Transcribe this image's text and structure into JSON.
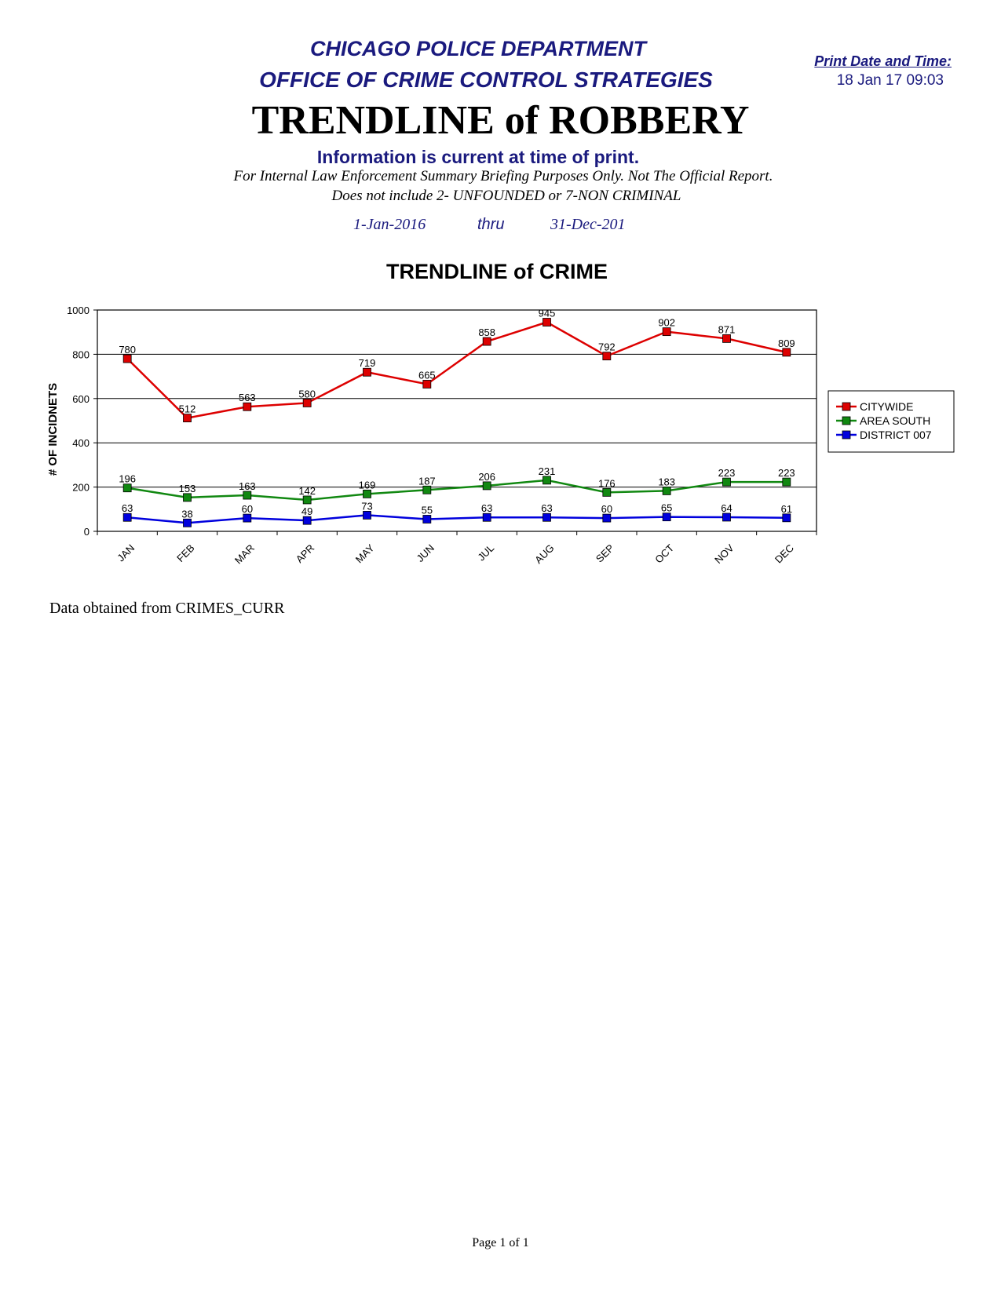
{
  "header": {
    "department": "CHICAGO POLICE DEPARTMENT",
    "office": "OFFICE OF CRIME CONTROL STRATEGIES",
    "report_title": "TRENDLINE of ROBBERY",
    "info_line": "Information is current at time of print.",
    "disclaimer_1": "For Internal Law Enforcement Summary Briefing Purposes Only. Not The Official Report.",
    "disclaimer_2": "Does not include 2- UNFOUNDED or 7-NON CRIMINAL",
    "date_start": "1-Jan-2016",
    "date_thru": "thru",
    "date_end": "31-Dec-201",
    "print_label": "Print Date and Time:",
    "print_value": "18 Jan 17  09:03"
  },
  "chart_data": {
    "type": "line",
    "title": "TRENDLINE of CRIME",
    "ylabel": "# OF INCIDNETS",
    "xlabel": "",
    "categories": [
      "JAN",
      "FEB",
      "MAR",
      "APR",
      "MAY",
      "JUN",
      "JUL",
      "AUG",
      "SEP",
      "OCT",
      "NOV",
      "DEC"
    ],
    "ylim": [
      0,
      1000
    ],
    "yticks": [
      0,
      200,
      400,
      600,
      800,
      1000
    ],
    "grid": "horizontal",
    "legend_position": "right",
    "series": [
      {
        "name": "CITYWIDE",
        "color": "#dd0000",
        "values": [
          780,
          512,
          563,
          580,
          719,
          665,
          858,
          945,
          792,
          902,
          871,
          809
        ]
      },
      {
        "name": "AREA SOUTH",
        "color": "#118811",
        "values": [
          196,
          153,
          163,
          142,
          169,
          187,
          206,
          231,
          176,
          183,
          223,
          223
        ]
      },
      {
        "name": "DISTRICT 007",
        "color": "#0000dd",
        "values": [
          63,
          38,
          60,
          49,
          73,
          55,
          63,
          63,
          60,
          65,
          64,
          61
        ]
      }
    ]
  },
  "footer": {
    "source": "Data obtained from CRIMES_CURR",
    "page": "Page 1 of 1"
  }
}
